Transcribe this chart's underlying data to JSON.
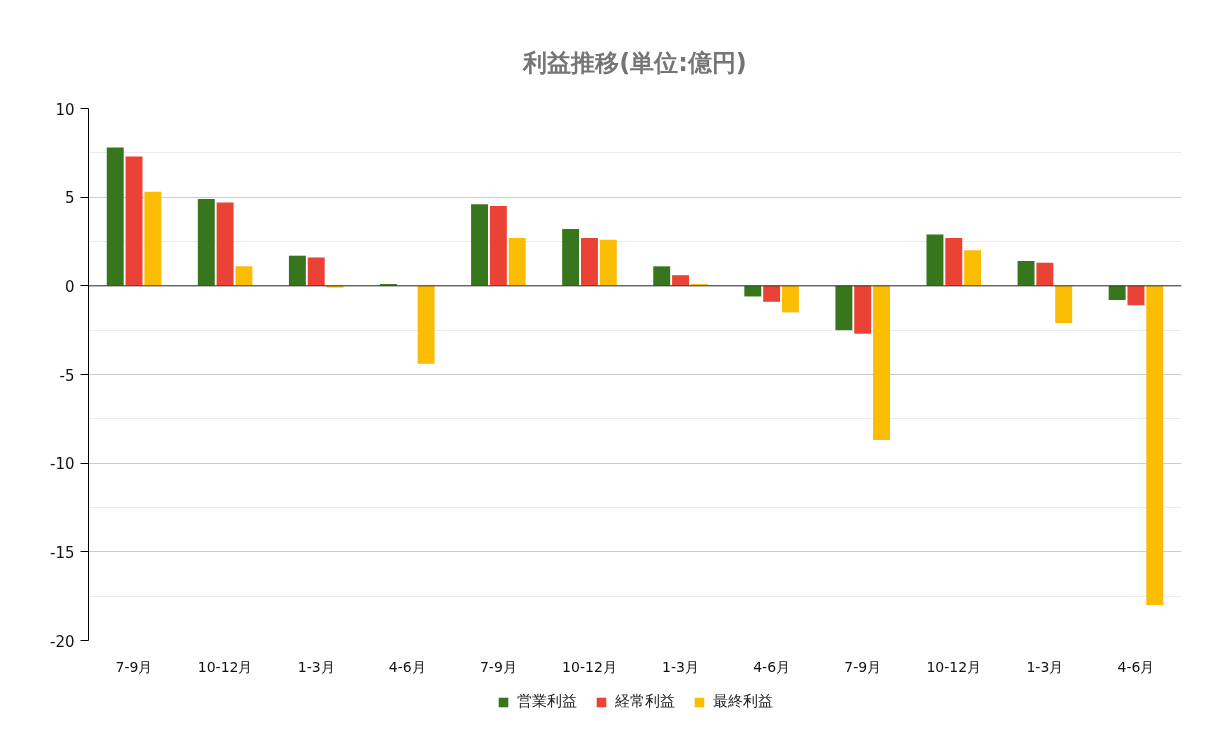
{
  "chart_data": {
    "type": "bar",
    "title": "利益推移(単位:億円)",
    "categories": [
      "7-9月",
      "10-12月",
      "1-3月",
      "4-6月",
      "7-9月",
      "10-12月",
      "1-3月",
      "4-6月",
      "7-9月",
      "10-12月",
      "1-3月",
      "4-6月"
    ],
    "series": [
      {
        "name": "営業利益",
        "color": "#38761d",
        "values": [
          7.8,
          4.9,
          1.7,
          0.1,
          4.6,
          3.2,
          1.1,
          -0.6,
          -2.5,
          2.9,
          1.4,
          -0.8
        ]
      },
      {
        "name": "経常利益",
        "color": "#ea4335",
        "values": [
          7.3,
          4.7,
          1.6,
          0,
          4.5,
          2.7,
          0.6,
          -0.9,
          -2.7,
          2.7,
          1.3,
          -1.1
        ]
      },
      {
        "name": "最終利益",
        "color": "#fbbc04",
        "values": [
          5.3,
          1.1,
          -0.1,
          -4.4,
          2.7,
          2.6,
          0.1,
          -1.5,
          -8.7,
          2.0,
          -2.1,
          -18.0
        ]
      }
    ],
    "ylim": [
      -20,
      10
    ],
    "yticks": [
      -20,
      -15,
      -10,
      -5,
      0,
      5,
      10
    ],
    "grid": "y",
    "legend": "bottom"
  }
}
